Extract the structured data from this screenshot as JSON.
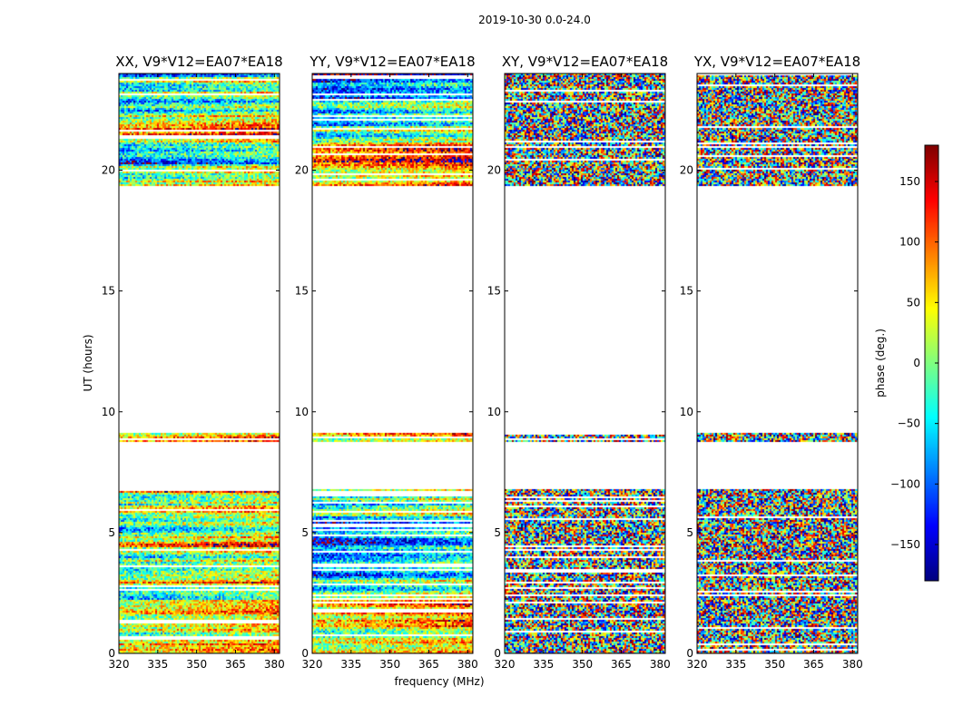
{
  "chart_data": {
    "type": "heatmap",
    "title": "2019-10-30 0.0-24.0",
    "xlabel": "frequency (MHz)",
    "ylabel": "UT (hours)",
    "xlim": [
      320,
      382
    ],
    "ylim": [
      0,
      24
    ],
    "xticks": [
      "320",
      "335",
      "350",
      "365",
      "380"
    ],
    "yticks": [
      "0",
      "5",
      "10",
      "15",
      "20"
    ],
    "panels": [
      {
        "label": "XX, V9*V12=EA07*EA18",
        "pol": "XX"
      },
      {
        "label": "YY, V9*V12=EA07*EA18",
        "pol": "YY"
      },
      {
        "label": "XY, V9*V12=EA07*EA18",
        "pol": "XY"
      },
      {
        "label": "YX, V9*V12=EA07*EA18",
        "pol": "YX"
      }
    ],
    "data_ranges_hours": [
      [
        0.0,
        6.8
      ],
      [
        8.8,
        9.2
      ],
      [
        19.4,
        24.0
      ]
    ],
    "colorbar": {
      "label": "phase (deg.)",
      "range": [
        -180,
        180
      ],
      "ticks": [
        "150",
        "100",
        "50",
        "0",
        "−50",
        "−100",
        "−150"
      ],
      "colormap": "jet"
    }
  },
  "colors": {
    "axes": "#000000",
    "background": "#ffffff"
  }
}
